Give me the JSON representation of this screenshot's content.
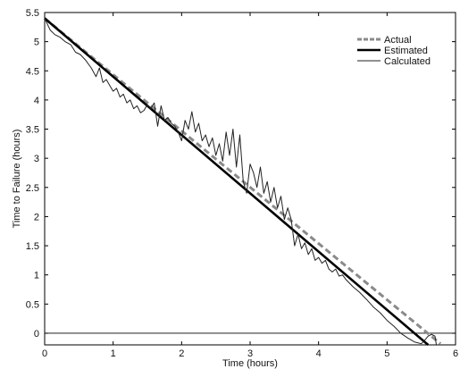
{
  "chart_data": {
    "type": "line",
    "xlabel": "Time (hours)",
    "ylabel": "Time to Failure (hours)",
    "xlim": [
      0,
      6
    ],
    "ylim": [
      -0.2,
      5.5
    ],
    "xticks": [
      "0",
      "1",
      "2",
      "3",
      "4",
      "5",
      "6"
    ],
    "yticks": [
      "0",
      "0.5",
      "1",
      "1.5",
      "2",
      "2.5",
      "3",
      "3.5",
      "4",
      "4.5",
      "5",
      "5.5"
    ],
    "legend_position": "top-right",
    "reference_line_y": 0,
    "series": [
      {
        "name": "Actual",
        "style": "dashed-thick",
        "color": "#8a8a8a",
        "x": [
          0,
          5.78
        ],
        "y": [
          5.4,
          -0.18
        ]
      },
      {
        "name": "Estimated",
        "style": "solid-thick",
        "color": "#000000",
        "x": [
          0,
          5.6
        ],
        "y": [
          5.4,
          -0.2
        ]
      },
      {
        "name": "Calculated",
        "style": "solid-thin",
        "color": "#222222",
        "x": [
          0,
          0.08,
          0.15,
          0.22,
          0.3,
          0.38,
          0.45,
          0.52,
          0.6,
          0.68,
          0.75,
          0.8,
          0.85,
          0.9,
          0.95,
          1.0,
          1.05,
          1.1,
          1.15,
          1.2,
          1.25,
          1.3,
          1.35,
          1.4,
          1.45,
          1.5,
          1.55,
          1.6,
          1.65,
          1.7,
          1.75,
          1.8,
          1.85,
          1.9,
          1.95,
          2.0,
          2.05,
          2.1,
          2.15,
          2.2,
          2.25,
          2.3,
          2.35,
          2.4,
          2.45,
          2.5,
          2.55,
          2.6,
          2.65,
          2.7,
          2.75,
          2.8,
          2.85,
          2.9,
          2.95,
          3.0,
          3.05,
          3.1,
          3.15,
          3.2,
          3.25,
          3.3,
          3.35,
          3.4,
          3.45,
          3.5,
          3.55,
          3.6,
          3.65,
          3.7,
          3.75,
          3.8,
          3.85,
          3.9,
          3.95,
          4.0,
          4.05,
          4.1,
          4.15,
          4.2,
          4.25,
          4.3,
          4.35,
          4.4,
          4.5,
          4.6,
          4.7,
          4.8,
          4.9,
          5.0,
          5.1,
          5.2,
          5.3,
          5.4,
          5.5,
          5.55,
          5.6,
          5.65,
          5.7,
          5.72
        ],
        "y": [
          5.4,
          5.2,
          5.12,
          5.08,
          5.0,
          4.95,
          4.82,
          4.78,
          4.68,
          4.55,
          4.4,
          4.55,
          4.3,
          4.35,
          4.25,
          4.15,
          4.2,
          4.05,
          4.1,
          3.95,
          4.0,
          3.85,
          3.9,
          3.78,
          3.82,
          3.92,
          3.85,
          3.95,
          3.55,
          3.9,
          3.65,
          3.7,
          3.6,
          3.55,
          3.45,
          3.3,
          3.65,
          3.5,
          3.8,
          3.45,
          3.6,
          3.3,
          3.4,
          3.2,
          3.35,
          3.05,
          3.25,
          2.95,
          3.45,
          3.05,
          3.5,
          2.85,
          3.4,
          2.6,
          2.4,
          2.9,
          2.75,
          2.5,
          2.85,
          2.4,
          2.6,
          2.25,
          2.5,
          2.15,
          2.35,
          1.95,
          2.15,
          1.95,
          1.5,
          1.7,
          1.45,
          1.55,
          1.35,
          1.45,
          1.25,
          1.3,
          1.2,
          1.25,
          1.1,
          1.05,
          1.1,
          0.98,
          1.0,
          0.92,
          0.8,
          0.7,
          0.58,
          0.45,
          0.35,
          0.22,
          0.12,
          0.0,
          -0.08,
          -0.15,
          -0.18,
          -0.12,
          -0.05,
          -0.02,
          -0.05,
          -0.2
        ]
      }
    ]
  }
}
